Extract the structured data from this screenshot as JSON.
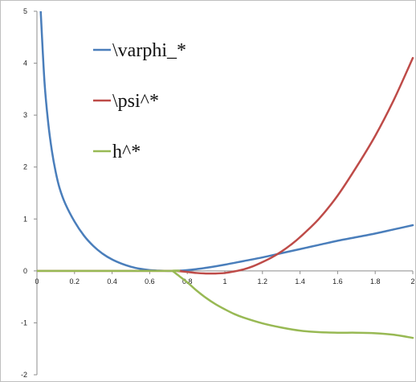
{
  "chart_data": {
    "type": "line",
    "title": "",
    "xlabel": "",
    "ylabel": "",
    "xlim": [
      0,
      2
    ],
    "ylim": [
      -2,
      5
    ],
    "x_ticks": [
      "0",
      "0.2",
      "0.4",
      "0.6",
      "0.8",
      "1",
      "1.2",
      "1.4",
      "1.6",
      "1.8",
      "2"
    ],
    "y_ticks": [
      "5",
      "4",
      "3",
      "2",
      "1",
      "0",
      "-1",
      "-2"
    ],
    "grid": false,
    "legend_position": "upper-center",
    "series": [
      {
        "name": "\\varphi_*",
        "color": "#4a7ebb",
        "x": [
          0.02,
          0.04,
          0.06,
          0.08,
          0.1,
          0.12,
          0.15,
          0.2,
          0.25,
          0.3,
          0.35,
          0.4,
          0.45,
          0.5,
          0.55,
          0.6,
          0.65,
          0.7,
          0.75,
          0.8,
          0.85,
          0.9,
          1.0,
          1.1,
          1.2,
          1.3,
          1.4,
          1.5,
          1.6,
          1.7,
          1.8,
          1.9,
          2.0
        ],
        "y": [
          5.0,
          3.65,
          2.85,
          2.3,
          1.9,
          1.6,
          1.3,
          0.95,
          0.68,
          0.48,
          0.33,
          0.22,
          0.14,
          0.08,
          0.04,
          0.015,
          0.005,
          0.0,
          0.003,
          0.015,
          0.035,
          0.06,
          0.12,
          0.19,
          0.26,
          0.34,
          0.42,
          0.5,
          0.58,
          0.65,
          0.72,
          0.8,
          0.88
        ]
      },
      {
        "name": "\\psi^*",
        "color": "#be4b48",
        "x": [
          0.0,
          0.7,
          0.75,
          0.8,
          0.85,
          0.9,
          0.95,
          1.0,
          1.05,
          1.1,
          1.15,
          1.2,
          1.25,
          1.3,
          1.35,
          1.4,
          1.5,
          1.6,
          1.7,
          1.8,
          1.9,
          2.0
        ],
        "y": [
          0.0,
          0.0,
          -0.005,
          -0.02,
          -0.04,
          -0.05,
          -0.05,
          -0.04,
          -0.01,
          0.03,
          0.09,
          0.17,
          0.26,
          0.37,
          0.5,
          0.65,
          1.0,
          1.45,
          2.0,
          2.6,
          3.3,
          4.1
        ]
      },
      {
        "name": "h^*",
        "color": "#98b954",
        "x": [
          0.0,
          0.7,
          0.72,
          0.75,
          0.8,
          0.85,
          0.9,
          0.95,
          1.0,
          1.05,
          1.1,
          1.2,
          1.3,
          1.4,
          1.5,
          1.6,
          1.7,
          1.8,
          1.9,
          2.0
        ],
        "y": [
          0.0,
          0.0,
          0.0,
          -0.08,
          -0.22,
          -0.38,
          -0.52,
          -0.64,
          -0.74,
          -0.83,
          -0.9,
          -1.01,
          -1.09,
          -1.15,
          -1.18,
          -1.19,
          -1.19,
          -1.2,
          -1.23,
          -1.29
        ]
      }
    ]
  }
}
